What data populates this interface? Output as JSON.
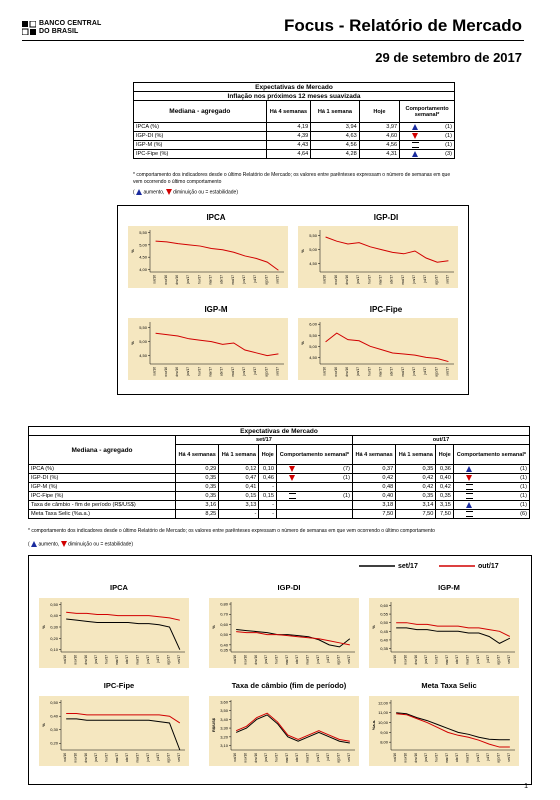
{
  "header": {
    "logo_line1": "BANCO CENTRAL",
    "logo_line2": "DO BRASIL",
    "title": "Focus - Relatório de Mercado",
    "date": "29 de setembro de 2017"
  },
  "colors": {
    "up": "#1a2b9e",
    "down": "#d10000",
    "panel": "#f5e7c0",
    "series1": "#d10000",
    "series2": "#000000"
  },
  "table1": {
    "title": "Expectativas de Mercado",
    "subtitle": "Inflação nos próximos 12 meses suavizada",
    "col_label": "Mediana - agregado",
    "cols": [
      "Há 4 semanas",
      "Há 1 semana",
      "Hoje",
      "Comportamento semanal*"
    ],
    "rows": [
      {
        "name": "IPCA (%)",
        "v4": "4,19",
        "v1": "3,94",
        "hoje": "3,97",
        "trend": "up",
        "count": "(1)"
      },
      {
        "name": "IGP-DI (%)",
        "v4": "4,39",
        "v1": "4,63",
        "hoje": "4,60",
        "trend": "down",
        "count": "(1)"
      },
      {
        "name": "IGP-M (%)",
        "v4": "4,43",
        "v1": "4,56",
        "hoje": "4,56",
        "trend": "eq",
        "count": "(1)"
      },
      {
        "name": "IPC-Fipe (%)",
        "v4": "4,64",
        "v1": "4,28",
        "hoje": "4,31",
        "trend": "up",
        "count": "(3)"
      }
    ],
    "note": "* comportamento dos indicadores desde o último Relatório de Mercado; os valores entre parênteses expressam o número de semanas em que vem ocorrendo o último comportamento",
    "legend_up": "aumento,",
    "legend_down": "diminuição ou",
    "legend_eq": "= estabilidade)"
  },
  "charts1": {
    "xticks": [
      "out/16",
      "nov/16",
      "dez/16",
      "jan/17",
      "fev/17",
      "mar/17",
      "abr/17",
      "mai/17",
      "jun/17",
      "jul/17",
      "ago/17",
      "set/17"
    ],
    "ylabel": "%",
    "items": [
      {
        "title": "IPCA",
        "yticks": [
          "5,50",
          "5,00",
          "4,50",
          "4,00"
        ],
        "ymin": 3.9,
        "ymax": 5.6,
        "values": [
          5.15,
          5.12,
          5.05,
          5.0,
          4.95,
          4.85,
          4.8,
          4.7,
          4.55,
          4.45,
          4.3,
          3.97
        ]
      },
      {
        "title": "IGP-DI",
        "yticks": [
          "5,50",
          "5,00",
          "4,50"
        ],
        "ymin": 4.2,
        "ymax": 5.7,
        "values": [
          5.45,
          5.3,
          5.2,
          5.25,
          5.1,
          5.0,
          4.9,
          4.85,
          4.95,
          4.7,
          4.55,
          4.6
        ]
      },
      {
        "title": "IGP-M",
        "yticks": [
          "5,50",
          "5,00",
          "4,50"
        ],
        "ymin": 4.2,
        "ymax": 5.7,
        "values": [
          5.3,
          5.25,
          5.2,
          5.1,
          5.05,
          5.0,
          4.9,
          4.95,
          4.7,
          4.6,
          4.5,
          4.56
        ]
      },
      {
        "title": "IPC-Fipe",
        "yticks": [
          "6,00",
          "5,50",
          "5,00",
          "4,50"
        ],
        "ymin": 4.2,
        "ymax": 6.1,
        "values": [
          5.2,
          5.6,
          5.3,
          5.25,
          5.0,
          4.85,
          4.7,
          4.65,
          4.6,
          4.5,
          4.45,
          4.31
        ]
      }
    ]
  },
  "table2": {
    "title": "Expectativas de Mercado",
    "group1": "set/17",
    "group2": "out/17",
    "col_label": "Mediana - agregado",
    "cols": [
      "Há 4 semanas",
      "Há 1 semana",
      "Hoje",
      "Comportamento semanal*"
    ],
    "rows": [
      {
        "name": "IPCA (%)",
        "a4": "0,29",
        "a1": "0,12",
        "ah": "0,10",
        "at": "down",
        "ac": "(7)",
        "b4": "0,37",
        "b1": "0,35",
        "bh": "0,36",
        "bt": "up",
        "bc": "(1)"
      },
      {
        "name": "IGP-DI (%)",
        "a4": "0,35",
        "a1": "0,47",
        "ah": "0,46",
        "at": "down",
        "ac": "(1)",
        "b4": "0,42",
        "b1": "0,42",
        "bh": "0,40",
        "bt": "down",
        "bc": "(1)"
      },
      {
        "name": "IGP-M (%)",
        "a4": "0,35",
        "a1": "0,41",
        "ah": "-",
        "at": "",
        "ac": "",
        "b4": "0,48",
        "b1": "0,42",
        "bh": "0,42",
        "bt": "eq",
        "bc": "(1)"
      },
      {
        "name": "IPC-Fipe (%)",
        "a4": "0,35",
        "a1": "0,15",
        "ah": "0,15",
        "at": "eq",
        "ac": "(1)",
        "b4": "0,40",
        "b1": "0,35",
        "bh": "0,35",
        "bt": "eq",
        "bc": "(1)"
      },
      {
        "name": "Taxa de câmbio - fim de período (R$/US$)",
        "a4": "3,16",
        "a1": "3,13",
        "ah": "-",
        "at": "",
        "ac": "",
        "b4": "3,18",
        "b1": "3,14",
        "bh": "3,15",
        "bt": "up",
        "bc": "(1)"
      },
      {
        "name": "Meta Taxa Selic (%a.a.)",
        "a4": "8,25",
        "a1": "-",
        "ah": "-",
        "at": "",
        "ac": "",
        "b4": "7,50",
        "b1": "7,50",
        "bh": "7,50",
        "bt": "eq",
        "bc": "(6)"
      }
    ],
    "note": "* comportamento dos indicadores desde o último Relatório de Mercado; os valores entre parênteses expressam o número de semanas em que vem ocorrendo o último comportamento",
    "legend_up": "aumento,",
    "legend_down": "diminuição ou",
    "legend_eq": "= estabilidade)"
  },
  "charts2": {
    "legend_s1": "set/17",
    "legend_s2": "out/17",
    "xticks": [
      "out/16",
      "nov/16",
      "dez/16",
      "jan/17",
      "fev/17",
      "mar/17",
      "abr/17",
      "mai/17",
      "jun/17",
      "jul/17",
      "ago/17",
      "set/17"
    ],
    "items": [
      {
        "title": "IPCA",
        "ylabel": "%",
        "yticks": [
          "0,50",
          "0,40",
          "0,30",
          "0,20",
          "0,10"
        ],
        "ymin": 0.08,
        "ymax": 0.52,
        "s1": [
          0.37,
          0.36,
          0.35,
          0.34,
          0.34,
          0.34,
          0.34,
          0.33,
          0.33,
          0.32,
          0.3,
          0.1
        ],
        "s2": [
          0.43,
          0.42,
          0.42,
          0.41,
          0.41,
          0.4,
          0.4,
          0.4,
          0.4,
          0.39,
          0.38,
          0.36
        ]
      },
      {
        "title": "IGP-DI",
        "ylabel": "%",
        "yticks": [
          "0,80",
          "0,70",
          "0,60",
          "0,50",
          "0,40",
          "0,35"
        ],
        "ymin": 0.33,
        "ymax": 0.82,
        "s1": [
          0.55,
          0.54,
          0.53,
          0.52,
          0.5,
          0.5,
          0.49,
          0.48,
          0.45,
          0.4,
          0.38,
          0.46
        ],
        "s2": [
          0.53,
          0.52,
          0.52,
          0.5,
          0.5,
          0.49,
          0.48,
          0.47,
          0.46,
          0.44,
          0.42,
          0.4
        ]
      },
      {
        "title": "IGP-M",
        "ylabel": "%",
        "yticks": [
          "0,60",
          "0,55",
          "0,50",
          "0,45",
          "0,40",
          "0,35"
        ],
        "ymin": 0.33,
        "ymax": 0.62,
        "s1": [
          0.47,
          0.47,
          0.46,
          0.46,
          0.45,
          0.45,
          0.45,
          0.44,
          0.44,
          0.42,
          0.38,
          0.41
        ],
        "s2": [
          0.5,
          0.5,
          0.49,
          0.49,
          0.48,
          0.48,
          0.48,
          0.47,
          0.47,
          0.46,
          0.45,
          0.42
        ]
      },
      {
        "title": "IPC-Fipe",
        "ylabel": "%",
        "yticks": [
          "0,50",
          "0,40",
          "0,30",
          "0,20"
        ],
        "ymin": 0.15,
        "ymax": 0.52,
        "s1": [
          0.38,
          0.38,
          0.37,
          0.37,
          0.37,
          0.37,
          0.37,
          0.37,
          0.37,
          0.36,
          0.35,
          0.15
        ],
        "s2": [
          0.42,
          0.42,
          0.41,
          0.41,
          0.41,
          0.41,
          0.41,
          0.41,
          0.41,
          0.41,
          0.4,
          0.35
        ]
      },
      {
        "title": "Taxa de câmbio (fim de período)",
        "ylabel": "R$/US$",
        "yticks": [
          "3,60",
          "3,50",
          "3,40",
          "3,30",
          "3,20",
          "3,10"
        ],
        "ymin": 3.05,
        "ymax": 3.62,
        "s1": [
          3.25,
          3.3,
          3.4,
          3.45,
          3.35,
          3.2,
          3.15,
          3.2,
          3.25,
          3.2,
          3.15,
          3.13
        ],
        "s2": [
          3.27,
          3.32,
          3.42,
          3.47,
          3.37,
          3.22,
          3.17,
          3.22,
          3.27,
          3.22,
          3.17,
          3.15
        ]
      },
      {
        "title": "Meta Taxa Selic",
        "ylabel": "%a.a.",
        "yticks": [
          "12,00",
          "11,00",
          "10,00",
          "9,00",
          "8,00"
        ],
        "ymin": 7.2,
        "ymax": 12.3,
        "s1": [
          11.0,
          10.9,
          10.5,
          10.2,
          9.8,
          9.4,
          9.0,
          8.8,
          8.5,
          8.3,
          8.25,
          8.25
        ],
        "s2": [
          10.9,
          10.8,
          10.4,
          10.0,
          9.5,
          9.0,
          8.7,
          8.5,
          8.2,
          7.8,
          7.5,
          7.5
        ]
      }
    ]
  },
  "footer": {
    "page": "1"
  }
}
